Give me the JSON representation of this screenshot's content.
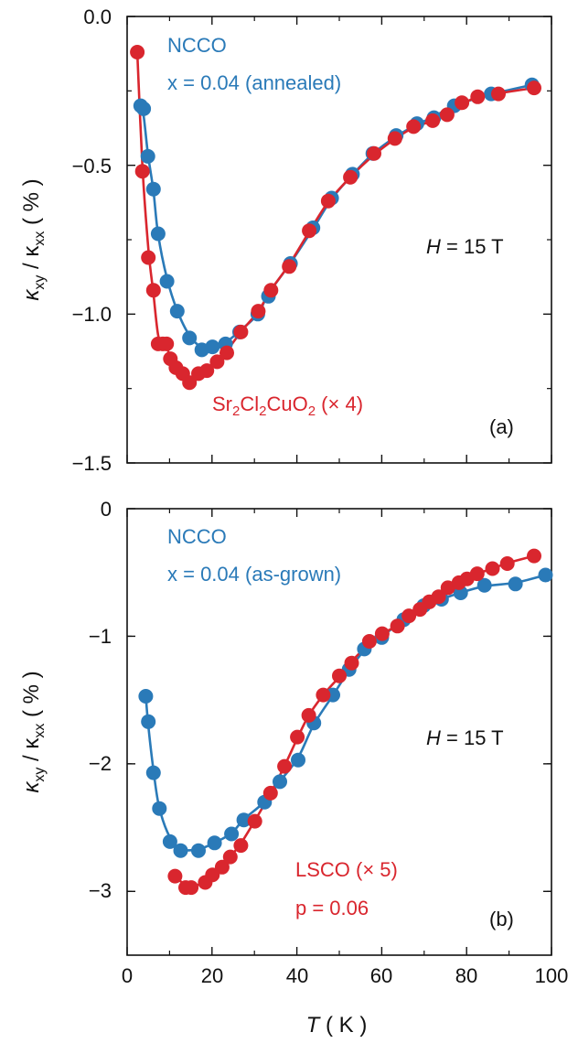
{
  "colors": {
    "red": "#d9262e",
    "blue": "#2a7ab8",
    "axis": "#111111"
  },
  "chart_data": [
    {
      "type": "scatter",
      "panel_label": "(a)",
      "ylabel_main": "κ",
      "ylabel_sub1": "xy",
      "ylabel_mid": " / κ",
      "ylabel_sub2": "xx",
      "ylabel_tail": " ( % )",
      "xlim": [
        0,
        100
      ],
      "ylim": [
        -1.5,
        0.0
      ],
      "xticks": [
        0,
        20,
        40,
        60,
        80,
        100
      ],
      "yticks": [
        0.0,
        -0.5,
        -1.0,
        -1.5
      ],
      "ytick_labels": [
        "0.0",
        "−0.5",
        "−1.0",
        "−1.5"
      ],
      "field_label_italic": "H",
      "field_label_rest": " = 15 T",
      "series": [
        {
          "name_line1": "NCCO",
          "name_line2": "x = 0.04 (annealed)",
          "color": "blue",
          "x": [
            3.2,
            3.9,
            4.9,
            6.2,
            7.3,
            9.4,
            11.8,
            14.7,
            17.6,
            20.1,
            23.2,
            26.5,
            30.8,
            33.3,
            38.5,
            43.8,
            48.2,
            53.1,
            57.9,
            63.4,
            68.3,
            72.3,
            77.1,
            85.8,
            95.4
          ],
          "y": [
            -0.3,
            -0.31,
            -0.47,
            -0.58,
            -0.73,
            -0.89,
            -0.99,
            -1.08,
            -1.12,
            -1.11,
            -1.1,
            -1.06,
            -1.0,
            -0.94,
            -0.83,
            -0.71,
            -0.61,
            -0.53,
            -0.46,
            -0.4,
            -0.36,
            -0.34,
            -0.3,
            -0.26,
            -0.23
          ]
        },
        {
          "name_line1": "Sr",
          "name_sub1": "2",
          "name_mid1": "Cl",
          "name_sub2": "2",
          "name_mid2": "CuO",
          "name_sub3": "2",
          "name_tail": " (× 4)",
          "color": "red",
          "x": [
            2.4,
            3.6,
            5.0,
            6.2,
            7.3,
            8.4,
            9.3,
            10.2,
            11.5,
            13.1,
            14.7,
            16.8,
            18.8,
            21.2,
            23.5,
            26.8,
            30.9,
            33.9,
            38.2,
            42.9,
            47.4,
            52.6,
            58.2,
            63.1,
            67.5,
            72.0,
            75.4,
            78.9,
            82.6,
            87.5,
            95.9
          ],
          "y": [
            -0.12,
            -0.52,
            -0.81,
            -0.92,
            -1.1,
            -1.1,
            -1.1,
            -1.15,
            -1.18,
            -1.2,
            -1.23,
            -1.2,
            -1.19,
            -1.16,
            -1.13,
            -1.06,
            -0.99,
            -0.92,
            -0.84,
            -0.72,
            -0.62,
            -0.54,
            -0.46,
            -0.41,
            -0.37,
            -0.35,
            -0.33,
            -0.29,
            -0.27,
            -0.26,
            -0.24
          ]
        }
      ]
    },
    {
      "type": "scatter",
      "panel_label": "(b)",
      "ylabel_main": "κ",
      "ylabel_sub1": "xy",
      "ylabel_mid": " / κ",
      "ylabel_sub2": "xx",
      "ylabel_tail": " ( % )",
      "xlabel_italic": "T",
      "xlabel_rest": " ( K )",
      "xlim": [
        0,
        100
      ],
      "ylim": [
        -3.5,
        0
      ],
      "xticks": [
        0,
        20,
        40,
        60,
        80,
        100
      ],
      "xtick_labels": [
        "0",
        "20",
        "40",
        "60",
        "80",
        "100"
      ],
      "yticks": [
        0,
        -1,
        -2,
        -3
      ],
      "ytick_labels": [
        "0",
        "−1",
        "−2",
        "−3"
      ],
      "field_label_italic": "H",
      "field_label_rest": " = 15 T",
      "series": [
        {
          "name_line1": "NCCO",
          "name_line2": "x = 0.04 (as-grown)",
          "color": "blue",
          "x": [
            4.4,
            5.0,
            6.2,
            7.6,
            10.1,
            12.6,
            16.8,
            20.6,
            24.6,
            27.5,
            32.4,
            36.0,
            40.3,
            44.0,
            48.5,
            52.3,
            55.9,
            60.0,
            65.2,
            69.9,
            74.1,
            78.6,
            84.2,
            91.5,
            98.6
          ],
          "y": [
            -1.47,
            -1.67,
            -2.07,
            -2.35,
            -2.61,
            -2.68,
            -2.68,
            -2.62,
            -2.55,
            -2.44,
            -2.3,
            -2.14,
            -1.97,
            -1.68,
            -1.46,
            -1.26,
            -1.1,
            -1.01,
            -0.87,
            -0.76,
            -0.71,
            -0.66,
            -0.6,
            -0.59,
            -0.52
          ]
        },
        {
          "name_line1": "LSCO (× 5)",
          "name_line2": "p = 0.06",
          "color": "red",
          "x": [
            11.3,
            13.8,
            15.1,
            18.4,
            20.1,
            22.4,
            24.3,
            26.8,
            30.1,
            33.8,
            37.1,
            40.1,
            42.8,
            46.2,
            50.0,
            52.9,
            57.1,
            60.1,
            63.7,
            66.4,
            69.0,
            71.2,
            73.4,
            75.6,
            78.2,
            80.1,
            82.5,
            86.1,
            89.6,
            95.9
          ],
          "y": [
            -2.88,
            -2.97,
            -2.97,
            -2.93,
            -2.87,
            -2.81,
            -2.73,
            -2.64,
            -2.45,
            -2.23,
            -2.02,
            -1.79,
            -1.62,
            -1.46,
            -1.31,
            -1.21,
            -1.04,
            -0.98,
            -0.92,
            -0.84,
            -0.79,
            -0.73,
            -0.69,
            -0.62,
            -0.58,
            -0.55,
            -0.51,
            -0.47,
            -0.43,
            -0.37
          ]
        }
      ]
    }
  ]
}
